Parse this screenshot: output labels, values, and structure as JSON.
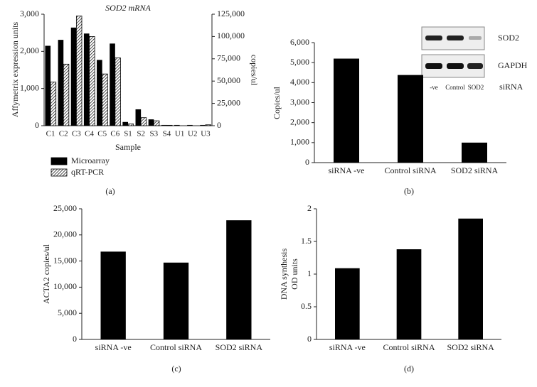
{
  "chart_data": [
    {
      "type": "bar",
      "title": "SOD2 mRNA",
      "panel_label": "(a)",
      "xlabel": "Sample",
      "ylabel": "Affymetrix expression units",
      "y2label": "copies/ul",
      "categories": [
        "C1",
        "C2",
        "C3",
        "C4",
        "C5",
        "C6",
        "S1",
        "S2",
        "S3",
        "S4",
        "U1",
        "U2",
        "U3"
      ],
      "series": [
        {
          "name": "Microarray",
          "color": "#000000",
          "values": [
            2150,
            2310,
            2640,
            2480,
            1770,
            2210,
            100,
            440,
            170,
            20,
            20,
            20,
            20
          ]
        },
        {
          "name": "qRT-PCR",
          "color": "#000000",
          "hatch": true,
          "axis": "y2",
          "values": [
            49000,
            69000,
            123000,
            100000,
            58000,
            76000,
            2000,
            9000,
            5500,
            500,
            0,
            0,
            1000
          ]
        }
      ],
      "ylim": [
        0,
        3000
      ],
      "yticks": [
        0,
        {
          "value": 1000,
          "label": "1,000"
        },
        {
          "value": 2000,
          "label": "2,000"
        },
        {
          "value": 3000,
          "label": "3,000"
        }
      ],
      "y2lim": [
        0,
        125000
      ],
      "y2ticks": [
        0,
        {
          "value": 25000,
          "label": "25,000"
        },
        {
          "value": 50000,
          "label": "50,000"
        },
        {
          "value": 75000,
          "label": "75,000"
        },
        {
          "value": 100000,
          "label": "100,000"
        },
        {
          "value": 125000,
          "label": "125,000"
        }
      ]
    },
    {
      "type": "bar",
      "panel_label": "(b)",
      "ylabel": "Copies/ul",
      "color": "#000000",
      "categories": [
        "siRNA -ve",
        "Control siRNA",
        "SOD2 siRNA"
      ],
      "values": [
        5200,
        4380,
        1000
      ],
      "ylim": [
        0,
        6000
      ],
      "yticks": [
        0,
        {
          "value": 1000,
          "label": "1,000"
        },
        {
          "value": 2000,
          "label": "2,000"
        },
        {
          "value": 3000,
          "label": "3,000"
        },
        {
          "value": 4000,
          "label": "4,000"
        },
        {
          "value": 5000,
          "label": "5,000"
        },
        {
          "value": 6000,
          "label": "6,000"
        }
      ],
      "inset": {
        "rows": [
          "SOD2",
          "GAPDH"
        ],
        "lanes": [
          "-ve",
          "Control",
          "SOD2"
        ],
        "lanes_title": "siRNA"
      }
    },
    {
      "type": "bar",
      "panel_label": "(c)",
      "ylabel": "ACTA2 copies/ul",
      "color": "#000000",
      "categories": [
        "siRNA -ve",
        "Control siRNA",
        "SOD2 siRNA"
      ],
      "values": [
        16800,
        14700,
        22800
      ],
      "ylim": [
        0,
        25000
      ],
      "yticks": [
        0,
        {
          "value": 5000,
          "label": "5,000"
        },
        {
          "value": 10000,
          "label": "10,000"
        },
        {
          "value": 15000,
          "label": "15,000"
        },
        {
          "value": 20000,
          "label": "20,000"
        },
        {
          "value": 25000,
          "label": "25,000"
        }
      ]
    },
    {
      "type": "bar",
      "panel_label": "(d)",
      "ylabel": [
        "DNA synthesis",
        "OD units"
      ],
      "color": "#000000",
      "categories": [
        "siRNA -ve",
        "Control siRNA",
        "SOD2 siRNA"
      ],
      "values": [
        1.09,
        1.38,
        1.85
      ],
      "ylim": [
        0,
        2
      ],
      "yticks": [
        0,
        0.5,
        1,
        1.5,
        2
      ]
    }
  ]
}
